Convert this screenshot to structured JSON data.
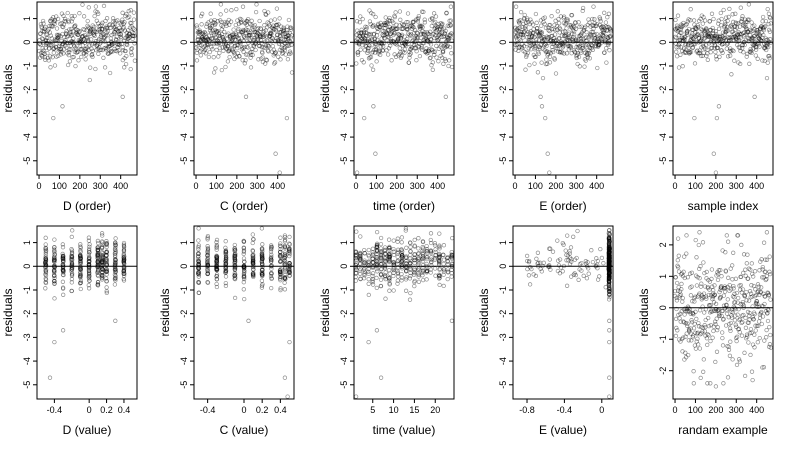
{
  "chart_data": [
    {
      "type": "scatter",
      "xlabel": "D (order)",
      "ylabel": "residuals",
      "xlim": [
        -10,
        480
      ],
      "ylim": [
        -5.6,
        1.7
      ],
      "xticks": [
        0,
        100,
        200,
        300,
        400
      ],
      "yticks": [
        1,
        0,
        -1,
        -2,
        -3,
        -4,
        -5
      ],
      "hline": 0,
      "pattern": "uniform",
      "series": [
        {
          "x": [
            20,
            70,
            115,
            160,
            290,
            410,
            430
          ],
          "y": [
            0.9,
            -3.2,
            -2.7,
            1.1,
            1.2,
            -2.3,
            0.4
          ]
        }
      ]
    },
    {
      "type": "scatter",
      "xlabel": "C (order)",
      "ylabel": "residuals",
      "xlim": [
        -10,
        480
      ],
      "ylim": [
        -5.6,
        1.7
      ],
      "xticks": [
        0,
        100,
        200,
        300,
        400
      ],
      "yticks": [
        1,
        0,
        -1,
        -2,
        -3,
        -4,
        -5
      ],
      "hline": 0,
      "pattern": "uniform",
      "series": [
        {
          "x": [
            30,
            95,
            230,
            245,
            390,
            410,
            445
          ],
          "y": [
            1.2,
            -1.1,
            1.5,
            -2.3,
            -4.7,
            -5.5,
            -3.2
          ]
        }
      ]
    },
    {
      "type": "scatter",
      "xlabel": "time (order)",
      "ylabel": "residuals",
      "xlim": [
        -10,
        480
      ],
      "ylim": [
        -5.6,
        1.7
      ],
      "xticks": [
        0,
        100,
        200,
        300,
        400
      ],
      "yticks": [
        1,
        0,
        -1,
        -2,
        -3,
        -4,
        -5
      ],
      "hline": 0,
      "pattern": "uniform",
      "series": [
        {
          "x": [
            5,
            40,
            85,
            95,
            215,
            440,
            465
          ],
          "y": [
            -5.5,
            -3.2,
            -2.7,
            -4.7,
            1.3,
            -2.3,
            1.5
          ]
        }
      ]
    },
    {
      "type": "scatter",
      "xlabel": "E (order)",
      "ylabel": "residuals",
      "xlim": [
        -10,
        480
      ],
      "ylim": [
        -5.6,
        1.7
      ],
      "xticks": [
        0,
        100,
        200,
        300,
        400
      ],
      "yticks": [
        1,
        0,
        -1,
        -2,
        -3,
        -4,
        -5
      ],
      "hline": 0,
      "pattern": "uniform",
      "series": [
        {
          "x": [
            5,
            125,
            132,
            148,
            160,
            168,
            460
          ],
          "y": [
            1.5,
            -2.3,
            -2.7,
            -3.2,
            -4.7,
            -5.5,
            1.2
          ]
        }
      ]
    },
    {
      "type": "scatter",
      "xlabel": "sample index",
      "ylabel": "residuals",
      "xlim": [
        -10,
        480
      ],
      "ylim": [
        -5.6,
        1.7
      ],
      "xticks": [
        0,
        100,
        200,
        300,
        400
      ],
      "yticks": [
        1,
        0,
        -1,
        -2,
        -3,
        -4,
        -5
      ],
      "hline": 0,
      "pattern": "uniform",
      "series": [
        {
          "x": [
            95,
            190,
            200,
            205,
            215,
            390,
            460
          ],
          "y": [
            -3.2,
            -4.7,
            -5.5,
            -3.2,
            -2.7,
            -2.3,
            1.2
          ]
        }
      ]
    },
    {
      "type": "scatter",
      "xlabel": "D (value)",
      "ylabel": "residuals",
      "xlim": [
        -0.6,
        0.55
      ],
      "ylim": [
        -5.6,
        1.7
      ],
      "xticks": [
        -0.4,
        0.0,
        0.2,
        0.4
      ],
      "yticks": [
        1,
        0,
        -1,
        -2,
        -3,
        -4,
        -5
      ],
      "hline": 0,
      "pattern": "columns",
      "columns": [
        -0.5,
        -0.4,
        -0.3,
        -0.2,
        -0.1,
        0.0,
        0.1,
        0.15,
        0.2,
        0.3,
        0.4
      ],
      "series": [
        {
          "x": [
            -0.45,
            -0.4,
            -0.3,
            0.15,
            0.3
          ],
          "y": [
            -4.7,
            -3.2,
            -2.7,
            1.3,
            -2.3
          ]
        }
      ]
    },
    {
      "type": "scatter",
      "xlabel": "C (value)",
      "ylabel": "residuals",
      "xlim": [
        -0.55,
        0.55
      ],
      "ylim": [
        -5.6,
        1.7
      ],
      "xticks": [
        -0.4,
        0.0,
        0.2,
        0.4
      ],
      "yticks": [
        1,
        0,
        -1,
        -2,
        -3,
        -4,
        -5
      ],
      "hline": 0,
      "pattern": "columns",
      "columns": [
        -0.5,
        -0.4,
        -0.3,
        -0.2,
        -0.1,
        0.0,
        0.1,
        0.2,
        0.3,
        0.4,
        0.45,
        0.5
      ],
      "series": [
        {
          "x": [
            0.05,
            0.45,
            0.48,
            0.5
          ],
          "y": [
            -2.3,
            -4.7,
            -5.5,
            -3.2
          ]
        }
      ]
    },
    {
      "type": "scatter",
      "xlabel": "time (value)",
      "ylabel": "residuals",
      "xlim": [
        0.5,
        24.5
      ],
      "ylim": [
        -5.6,
        1.7
      ],
      "xticks": [
        5,
        10,
        15,
        20
      ],
      "yticks": [
        1,
        0,
        -1,
        -2,
        -3,
        -4,
        -5
      ],
      "hline": 0,
      "pattern": "columns",
      "columns": [
        1,
        2,
        3,
        4,
        5,
        6,
        7,
        8,
        9,
        10,
        11,
        12,
        13,
        14,
        15,
        16,
        17,
        18,
        19,
        20,
        21,
        22,
        23,
        24
      ],
      "series": [
        {
          "x": [
            1,
            4,
            6,
            7,
            24
          ],
          "y": [
            -5.5,
            -3.2,
            -2.7,
            -4.7,
            -2.3
          ]
        }
      ]
    },
    {
      "type": "scatter",
      "xlabel": "E (value)",
      "ylabel": "residuals",
      "xlim": [
        -0.95,
        0.12
      ],
      "ylim": [
        -5.6,
        1.7
      ],
      "xticks": [
        -0.8,
        -0.4,
        0.0
      ],
      "yticks": [
        1,
        0,
        -1,
        -2,
        -3,
        -4,
        -5
      ],
      "hline": 0,
      "pattern": "e_value",
      "series": [
        {
          "x": [
            0.08,
            0.08,
            0.08,
            0.08,
            0.08
          ],
          "y": [
            -2.3,
            -2.7,
            -3.2,
            -4.7,
            -5.5
          ]
        }
      ]
    },
    {
      "type": "scatter",
      "xlabel": "randam example",
      "ylabel": "residuals",
      "xlim": [
        -10,
        480
      ],
      "ylim": [
        -2.9,
        2.6
      ],
      "xticks": [
        0,
        100,
        200,
        300,
        400
      ],
      "yticks": [
        2,
        1,
        0,
        -1,
        -2
      ],
      "hline": 0,
      "pattern": "normal",
      "series": [
        {
          "x": [
            15,
            120,
            200,
            260,
            380,
            450
          ],
          "y": [
            2.2,
            2.4,
            -2.5,
            2.1,
            -2.3,
            2.4
          ]
        }
      ]
    }
  ]
}
